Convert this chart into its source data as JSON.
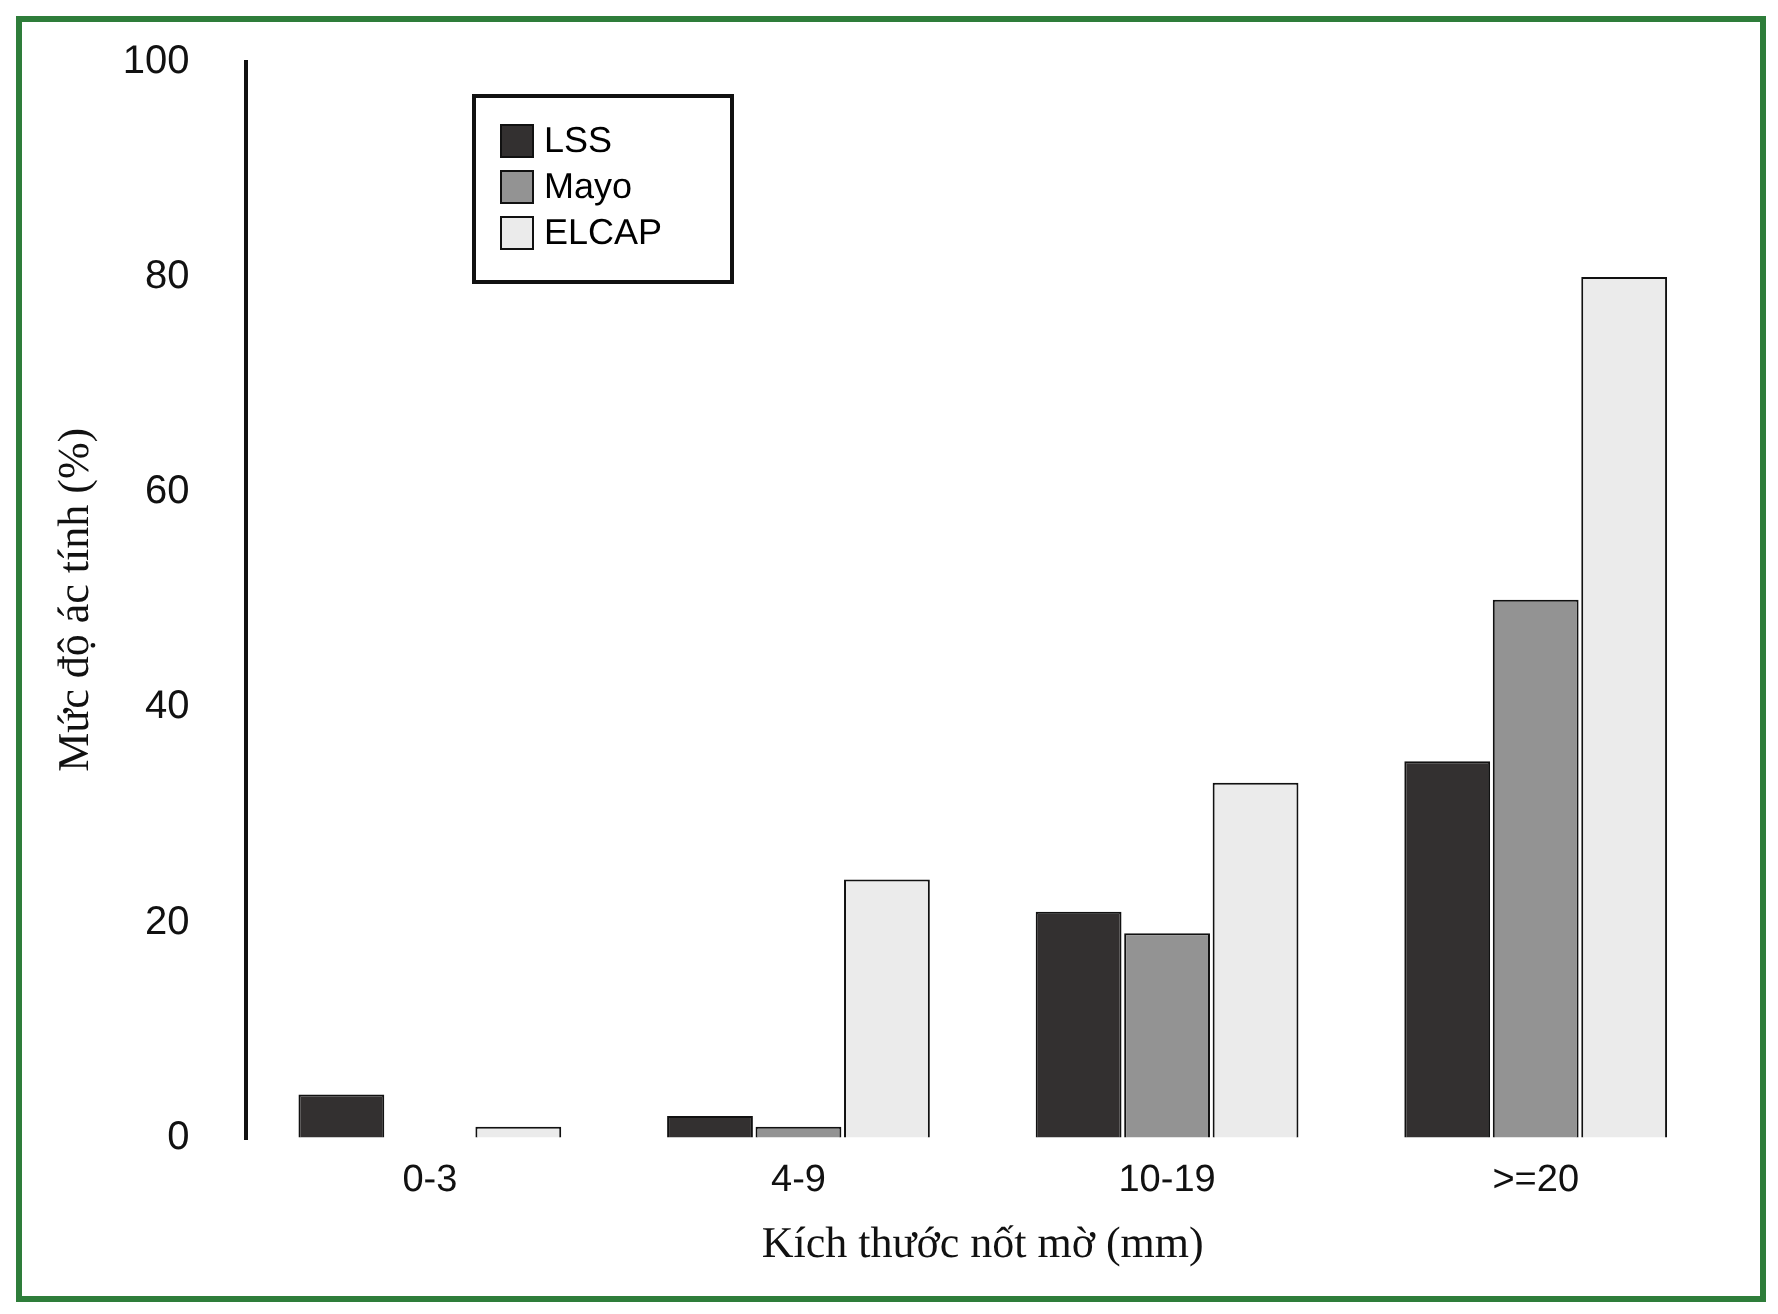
{
  "chart_data": {
    "type": "bar",
    "xlabel": "Kích thước nốt mờ (mm)",
    "ylabel": "Mức độ ác tính (%)",
    "categories": [
      "0-3",
      "4-9",
      "10-19",
      ">=20"
    ],
    "series": [
      {
        "name": "LSS",
        "color": "#333030",
        "values": [
          4,
          2,
          21,
          35
        ]
      },
      {
        "name": "Mayo",
        "color": "#939393",
        "values": [
          0,
          1,
          19,
          50
        ]
      },
      {
        "name": "ELCAP",
        "color": "#ebebeb",
        "values": [
          1,
          24,
          33,
          80
        ]
      }
    ],
    "ylim": [
      0,
      100
    ],
    "yticks": [
      0,
      20,
      40,
      60,
      80,
      100
    ],
    "grid": false,
    "legend": "top left"
  }
}
